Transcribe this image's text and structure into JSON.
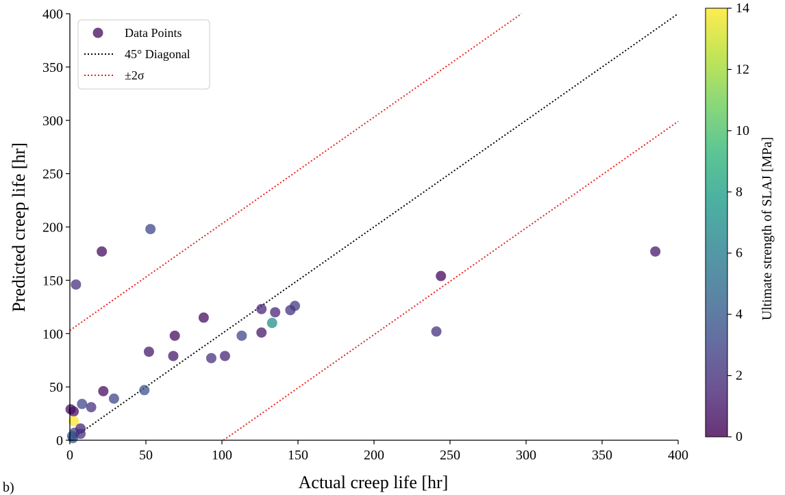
{
  "panel_label": "b)",
  "colors": {
    "diagonal": "#000000",
    "band": "#e8201c",
    "colormap": [
      "#440154",
      "#482878",
      "#3e4989",
      "#31688e",
      "#26828e",
      "#1f9e89",
      "#35b779",
      "#6ece58",
      "#b5de2b",
      "#fde725"
    ]
  },
  "chart_data": {
    "type": "scatter",
    "xlabel": "Actual creep life [hr]",
    "ylabel": "Predicted creep life [hr]",
    "xlim": [
      0,
      400
    ],
    "ylim": [
      0,
      400
    ],
    "xticks": [
      "0",
      "50",
      "100",
      "150",
      "200",
      "250",
      "300",
      "350",
      "400"
    ],
    "yticks": [
      "0",
      "50",
      "100",
      "150",
      "200",
      "250",
      "300",
      "350",
      "400"
    ],
    "legend": {
      "placement": "top-left",
      "entries": [
        "Data Points",
        "45° Diagonal",
        "±2σ"
      ]
    },
    "colorbar": {
      "label": "Ultimate strength of SLAJ [MPa]",
      "range": [
        0,
        14
      ],
      "ticks": [
        "0",
        "2",
        "4",
        "6",
        "8",
        "10",
        "12",
        "14"
      ],
      "colormap": "viridis"
    },
    "lines": [
      {
        "name": "45° Diagonal",
        "style": "dotted",
        "color": "black",
        "points": [
          [
            0,
            0
          ],
          [
            400,
            400
          ]
        ]
      },
      {
        "name": "±2σ",
        "style": "dotted",
        "color": "red",
        "points": [
          [
            0,
            103
          ],
          [
            297,
            400
          ]
        ]
      },
      {
        "name": "±2σ",
        "style": "dotted",
        "color": "red",
        "points": [
          [
            101,
            0
          ],
          [
            400,
            299
          ]
        ]
      }
    ],
    "series": [
      {
        "name": "Data Points",
        "points": [
          {
            "x": 0.5,
            "y": 29,
            "c": 0.5
          },
          {
            "x": 2.5,
            "y": 27,
            "c": 0.5
          },
          {
            "x": 2.5,
            "y": 18,
            "c": 14
          },
          {
            "x": 1.5,
            "y": 4,
            "c": 4
          },
          {
            "x": 3,
            "y": 7,
            "c": 3
          },
          {
            "x": 2,
            "y": 2,
            "c": 4
          },
          {
            "x": 4,
            "y": 146,
            "c": 2
          },
          {
            "x": 7,
            "y": 11,
            "c": 1.5
          },
          {
            "x": 7,
            "y": 6,
            "c": 2
          },
          {
            "x": 8,
            "y": 34,
            "c": 3
          },
          {
            "x": 14,
            "y": 31,
            "c": 2
          },
          {
            "x": 21,
            "y": 177,
            "c": 0.5
          },
          {
            "x": 22,
            "y": 46,
            "c": 0.5
          },
          {
            "x": 29,
            "y": 39,
            "c": 3
          },
          {
            "x": 49,
            "y": 47,
            "c": 3.5
          },
          {
            "x": 52,
            "y": 83,
            "c": 1
          },
          {
            "x": 53,
            "y": 198,
            "c": 3
          },
          {
            "x": 68,
            "y": 79,
            "c": 1
          },
          {
            "x": 69,
            "y": 98,
            "c": 0.5
          },
          {
            "x": 88,
            "y": 115,
            "c": 0.5
          },
          {
            "x": 93,
            "y": 77,
            "c": 2
          },
          {
            "x": 102,
            "y": 79,
            "c": 1.5
          },
          {
            "x": 113,
            "y": 98,
            "c": 3
          },
          {
            "x": 126,
            "y": 123,
            "c": 1.5
          },
          {
            "x": 126,
            "y": 101,
            "c": 1
          },
          {
            "x": 133,
            "y": 110,
            "c": 7
          },
          {
            "x": 135,
            "y": 120,
            "c": 1.5
          },
          {
            "x": 145,
            "y": 122,
            "c": 2
          },
          {
            "x": 148,
            "y": 126,
            "c": 2.5
          },
          {
            "x": 241,
            "y": 102,
            "c": 2
          },
          {
            "x": 244,
            "y": 154,
            "c": 0.2
          },
          {
            "x": 385,
            "y": 177,
            "c": 1
          }
        ]
      }
    ]
  }
}
